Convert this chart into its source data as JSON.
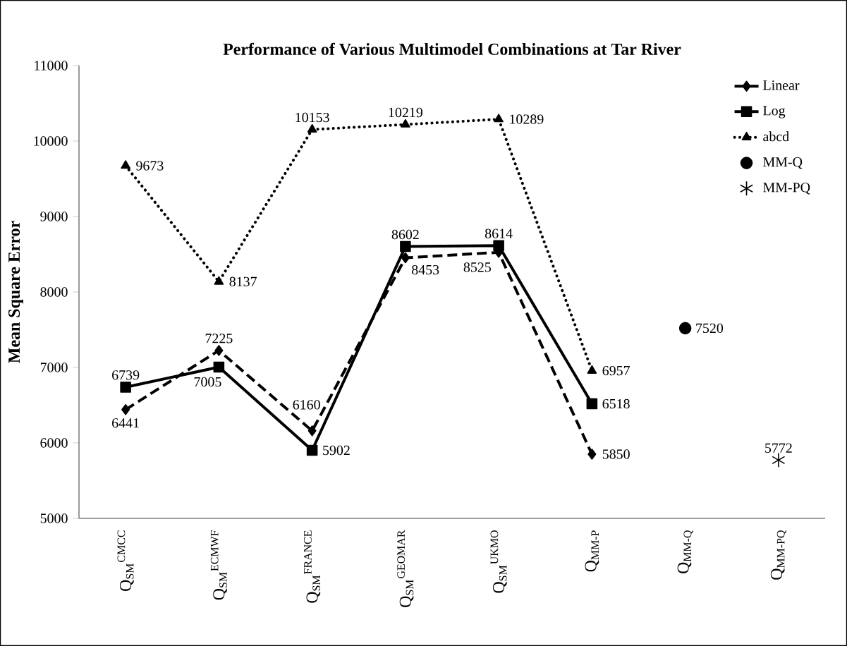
{
  "chart_data": {
    "type": "line",
    "title": "Performance of Various Multimodel Combinations at Tar River",
    "ylabel": "Mean Square Error",
    "categories": [
      "Q$_{SM}$$^{CMCC}$",
      "Q$_{SM}$$^{ECMWF}$",
      "Q$_{SM}$$^{FRANCE}$",
      "Q$_{SM}$$^{GEOMAR}$",
      "Q$_{SM}$$^{UKMO}$",
      "Q$_{MM-P}$",
      "Q$_{MM-Q}$",
      "Q$_{MM-PQ}$"
    ],
    "series": [
      {
        "name": "Linear",
        "color": "#000000",
        "marker": "diamond",
        "line_style": "dashed",
        "values": [
          6441,
          7225,
          6160,
          8453,
          8525,
          5850,
          null,
          null
        ]
      },
      {
        "name": "Log",
        "color": "#000000",
        "marker": "square",
        "line_style": "solid",
        "values": [
          6739,
          7005,
          5902,
          8602,
          8614,
          6518,
          null,
          null
        ]
      },
      {
        "name": "abcd",
        "color": "#000000",
        "marker": "triangle",
        "line_style": "dotted",
        "values": [
          9673,
          8137,
          10153,
          10219,
          10289,
          6957,
          null,
          null
        ]
      },
      {
        "name": "MM-Q",
        "type": "scatter",
        "color": "#000000",
        "marker": "circle",
        "values": [
          null,
          null,
          null,
          null,
          null,
          null,
          7520,
          null
        ]
      },
      {
        "name": "MM-PQ",
        "type": "scatter",
        "color": "#000000",
        "marker": "cross",
        "values": [
          null,
          null,
          null,
          null,
          null,
          null,
          null,
          5772
        ]
      }
    ],
    "ylim": [
      5000,
      11000
    ],
    "yticks": [
      5000,
      6000,
      7000,
      8000,
      9000,
      10000,
      11000
    ],
    "data_labels": true,
    "legend": "top right"
  }
}
